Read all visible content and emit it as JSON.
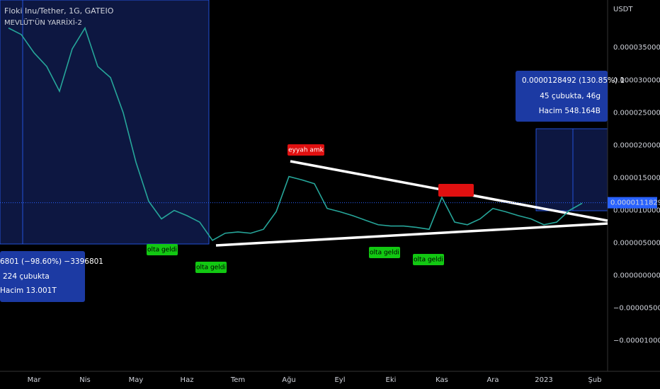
{
  "chart_data": {
    "type": "line",
    "title": "Floki Inu/Tether, 1G, GATEIO",
    "subtitle": "MEVLÜT'ÜN YARRİXİ-2",
    "axis_unit": "USDT",
    "categories": [
      null,
      null,
      "Mar",
      null,
      null,
      null,
      "Nis",
      null,
      null,
      null,
      "May",
      null,
      null,
      null,
      "Haz",
      null,
      null,
      null,
      "Tem",
      null,
      null,
      null,
      "Ağu",
      null,
      null,
      null,
      "Eyl",
      null,
      null,
      null,
      "Eki",
      null,
      null,
      null,
      "Kas",
      null,
      null,
      null,
      "Ara",
      null,
      null,
      null,
      "2023",
      null,
      null,
      null,
      "Şub"
    ],
    "series": [
      {
        "name": "FLOKI/USDT",
        "color": "#26a69a",
        "values": [
          3.8e-05,
          3.7e-05,
          3.42e-05,
          3.21e-05,
          2.83e-05,
          3.48e-05,
          3.8e-05,
          3.21e-05,
          3.04e-05,
          2.5e-05,
          1.74e-05,
          1.14e-05,
          8.7e-06,
          1e-05,
          9.2e-06,
          8.2e-06,
          5.4e-06,
          6.5e-06,
          6.7e-06,
          6.5e-06,
          7.1e-06,
          9.8e-06,
          1.52e-05,
          1.47e-05,
          1.41e-05,
          1.03e-05,
          9.8e-06,
          9.2e-06,
          8.5e-06,
          7.8e-06,
          7.6e-06,
          7.6e-06,
          7.4e-06,
          7.1e-06,
          1.2e-05,
          8.2e-06,
          7.8e-06,
          8.7e-06,
          1.03e-05,
          9.8e-06,
          9.2e-06,
          8.7e-06,
          7.8e-06,
          8.2e-06,
          1e-05,
          1.11e-05,
          null
        ]
      }
    ],
    "ylim": [
      -1.47e-05,
      4.23e-05
    ],
    "yticks": [
      {
        "value": -1e-05,
        "label": "−0.0000100000"
      },
      {
        "value": -5e-06,
        "label": "−0.0000050000"
      },
      {
        "value": 0,
        "label": "0.0000000000"
      },
      {
        "value": 5e-06,
        "label": "0.0000050000"
      },
      {
        "value": 1e-05,
        "label": "0.0000100000"
      },
      {
        "value": 1.5e-05,
        "label": "0.0000150000"
      },
      {
        "value": 2e-05,
        "label": "0.0000200000"
      },
      {
        "value": 2.5e-05,
        "label": "0.0000250000"
      },
      {
        "value": 3e-05,
        "label": "0.0000300000"
      },
      {
        "value": 3.5e-05,
        "label": "0.0000350000"
      }
    ],
    "grid": false,
    "last_price": {
      "value": 1.11829e-05,
      "label": "0.0000111829"
    },
    "annotations": [
      "eyyah amk",
      "olta geldi",
      "olta geldi",
      "olta geldi",
      "olta geldi"
    ],
    "measure_left": [
      "6801 (−98.60%) −3396801",
      "224 çubukta",
      "Hacim 13.001T"
    ],
    "measure_right": [
      "0.0000128492 (130.85%) 1",
      "45 çubukta, 46g",
      "Hacim 548.164B"
    ]
  }
}
